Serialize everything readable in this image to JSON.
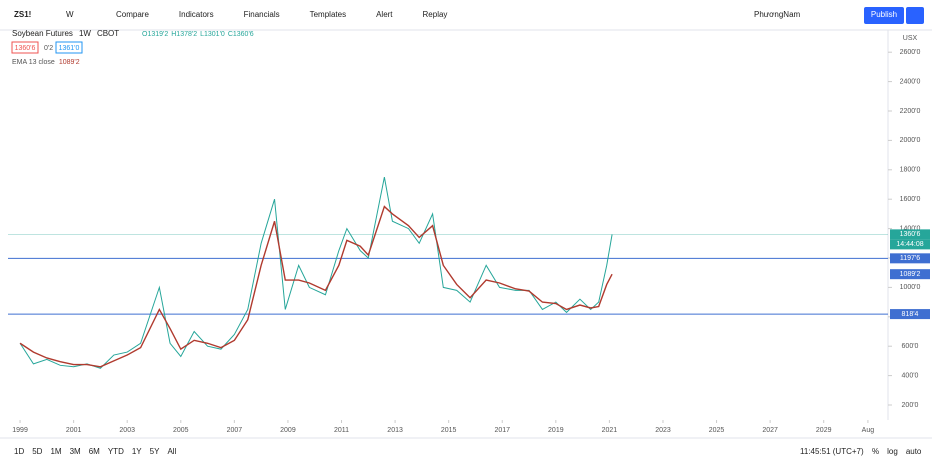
{
  "toolbar": {
    "symbol": "ZS1!",
    "interval": "W",
    "items": [
      "Compare",
      "Indicators",
      "Financials",
      "Templates",
      "Alert",
      "Replay"
    ],
    "account": "PhươngNam",
    "publish": "Publish"
  },
  "legend": {
    "title": "Soybean Futures",
    "interval": "1W",
    "exchange": "CBOT",
    "ohlc": [
      "O1319'2",
      "H1378'2",
      "L1301'0",
      "C1360'6"
    ],
    "bid": "1360'6",
    "spread": "0'2",
    "ask": "1361'0",
    "ema": "EMA 13 close"
  },
  "currency": "USX",
  "timer": "14:44:08",
  "ranges": [
    "1D",
    "5D",
    "1M",
    "3M",
    "6M",
    "YTD",
    "1Y",
    "5Y",
    "All"
  ],
  "clock": "11:45:51 (UTC+7)",
  "scale_modes": [
    "%",
    "log",
    "auto"
  ],
  "chart_data": {
    "type": "line",
    "x": [
      1999.0,
      1999.5,
      2000.0,
      2000.5,
      2001.0,
      2001.5,
      2002.0,
      2002.5,
      2003.0,
      2003.5,
      2004.2,
      2004.6,
      2005.0,
      2005.5,
      2006.0,
      2006.5,
      2007.0,
      2007.5,
      2008.0,
      2008.5,
      2008.9,
      2009.4,
      2009.8,
      2010.4,
      2010.9,
      2011.2,
      2011.7,
      2012.0,
      2012.6,
      2012.9,
      2013.5,
      2013.9,
      2014.4,
      2014.8,
      2015.3,
      2015.8,
      2016.4,
      2016.9,
      2017.5,
      2018.0,
      2018.5,
      2019.0,
      2019.4,
      2019.9,
      2020.3,
      2020.6,
      2020.9,
      2021.1
    ],
    "series": [
      {
        "color": "#26a69a",
        "values": [
          620,
          480,
          510,
          470,
          460,
          480,
          450,
          540,
          560,
          620,
          1000,
          620,
          530,
          700,
          600,
          580,
          680,
          850,
          1300,
          1600,
          850,
          1150,
          1000,
          950,
          1250,
          1400,
          1250,
          1200,
          1750,
          1450,
          1400,
          1300,
          1500,
          1000,
          980,
          900,
          1150,
          1000,
          980,
          980,
          850,
          900,
          830,
          920,
          850,
          900,
          1150,
          1360
        ]
      },
      {
        "name": "EMA 13 close",
        "color": "#b03a2e",
        "last_label": "1089'2",
        "values": [
          620,
          560,
          520,
          495,
          475,
          475,
          460,
          500,
          540,
          590,
          850,
          720,
          580,
          640,
          620,
          590,
          640,
          780,
          1150,
          1450,
          1050,
          1050,
          1030,
          980,
          1150,
          1320,
          1280,
          1220,
          1550,
          1500,
          1420,
          1340,
          1420,
          1150,
          1020,
          930,
          1050,
          1030,
          990,
          975,
          900,
          890,
          850,
          880,
          860,
          870,
          1020,
          1090
        ]
      }
    ],
    "xlim": [
      1998.55,
      2031.4
    ],
    "xticks": [
      1999,
      2001,
      2003,
      2005,
      2007,
      2009,
      2011,
      2013,
      2015,
      2017,
      2019,
      2021,
      2023,
      2025,
      2027,
      2029,
      {
        "value": 2030.65,
        "label": "Aug"
      }
    ],
    "ylim": [
      98,
      2751
    ],
    "yticks": [
      {
        "value": 200,
        "label": "200'0"
      },
      {
        "value": 400,
        "label": "400'0"
      },
      {
        "value": 600,
        "label": "600'0"
      },
      {
        "value": 800,
        "label": "800'0"
      },
      {
        "value": 1000,
        "label": "1000'0"
      },
      {
        "value": 1200,
        "label": "1200'0"
      },
      {
        "value": 1400,
        "label": "1400'0"
      },
      {
        "value": 1600,
        "label": "1600'0"
      },
      {
        "value": 1800,
        "label": "1800'0"
      },
      {
        "value": 2000,
        "label": "2000'0"
      },
      {
        "value": 2200,
        "label": "2200'0"
      },
      {
        "value": 2400,
        "label": "2400'0"
      },
      {
        "value": 2600,
        "label": "2600'0"
      }
    ],
    "current": {
      "value": 1360.75,
      "label": "1360'6",
      "color": "#26a69a"
    },
    "hlines": [
      {
        "value": 1197.75,
        "label": "1197'6"
      },
      {
        "value": 818.5,
        "label": "818'4"
      }
    ],
    "hline_color": "#3f6fd1"
  }
}
